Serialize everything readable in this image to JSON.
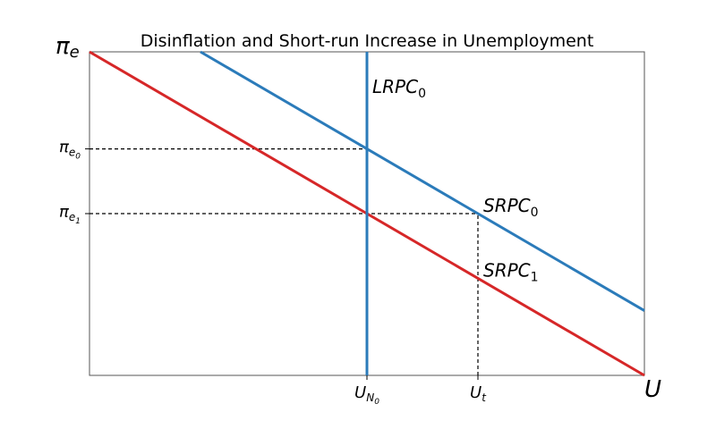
{
  "chart_data": {
    "type": "line",
    "title": "Disinflation and Short-run Increase in Unemployment",
    "xlabel": {
      "main": "U",
      "sub": ""
    },
    "ylabel": {
      "main": "π",
      "sub": "e"
    },
    "xlim": [
      0,
      10
    ],
    "ylim": [
      0,
      10
    ],
    "grid": false,
    "x_ticks": [
      {
        "value": 5,
        "main": "U",
        "sub": "N",
        "subsub": "0"
      },
      {
        "value": 7,
        "main": "U",
        "sub": "t",
        "subsub": ""
      }
    ],
    "y_ticks": [
      {
        "value": 7,
        "main": "π",
        "sub": "e",
        "subsub": "0"
      },
      {
        "value": 5,
        "main": "π",
        "sub": "e",
        "subsub": "1"
      }
    ],
    "series": [
      {
        "name": "",
        "label_main": "SRPC",
        "label_sub": "0",
        "color": "#2b7bba",
        "x": [
          2,
          10
        ],
        "y": [
          10,
          2
        ],
        "label_at": [
          7,
          5
        ]
      },
      {
        "name": "",
        "label_main": "SRPC",
        "label_sub": "1",
        "color": "#d62728",
        "x": [
          0,
          10
        ],
        "y": [
          10,
          0
        ],
        "label_at": [
          7,
          3
        ]
      },
      {
        "name": "",
        "label_main": "LRPC",
        "label_sub": "0",
        "color": "#2b7bba",
        "x": [
          5,
          5
        ],
        "y": [
          0,
          10
        ],
        "label_at": [
          5,
          9
        ]
      }
    ],
    "guides": [
      {
        "x": [
          0,
          5
        ],
        "y": [
          7,
          7
        ]
      },
      {
        "x": [
          0,
          7
        ],
        "y": [
          5,
          5
        ]
      },
      {
        "x": [
          7,
          7
        ],
        "y": [
          0,
          5
        ]
      }
    ]
  }
}
